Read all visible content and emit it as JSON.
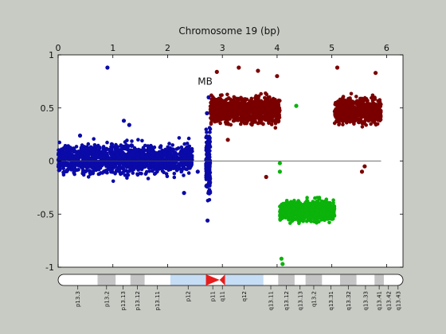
{
  "chart_data": {
    "type": "scatter",
    "title": "Chromosome 19 (bp)",
    "xlim": [
      0,
      6.3
    ],
    "ylim": [
      -1,
      1
    ],
    "x_ticks": [
      "0",
      "1",
      "2",
      "3",
      "4",
      "5",
      "6"
    ],
    "y_ticks": [
      "1",
      "0.5",
      "0",
      "-0.5",
      "-1"
    ],
    "annotation": "MB",
    "baseline": {
      "y": 0,
      "x_range": [
        0,
        5.9
      ]
    },
    "grid": false,
    "series": [
      {
        "color": "#0a0aa8",
        "x_range": [
          0,
          2.45
        ],
        "y_mean": 0.02,
        "y_spread": 0.12,
        "count": 1400,
        "outliers": [
          [
            0.9,
            0.88
          ],
          [
            1.2,
            0.38
          ],
          [
            1.3,
            0.34
          ],
          [
            0.4,
            0.24
          ],
          [
            2.3,
            -0.3
          ],
          [
            2.55,
            -0.1
          ]
        ]
      },
      {
        "color": "#0a0aa8",
        "x_range": [
          2.7,
          2.78
        ],
        "y_mean": 0.0,
        "y_spread": 0.28,
        "count": 180,
        "outliers": [
          [
            2.73,
            -0.56
          ],
          [
            2.75,
            0.6
          ],
          [
            2.72,
            0.45
          ]
        ]
      },
      {
        "color": "#7a0000",
        "x_range": [
          2.78,
          4.05
        ],
        "y_mean": 0.48,
        "y_spread": 0.1,
        "count": 1100,
        "outliers": [
          [
            3.3,
            0.88
          ],
          [
            2.9,
            0.84
          ],
          [
            3.65,
            0.85
          ],
          [
            3.8,
            -0.15
          ],
          [
            3.1,
            0.2
          ],
          [
            4.0,
            0.8
          ]
        ]
      },
      {
        "color": "#0bb30b",
        "x_range": [
          4.05,
          5.05
        ],
        "y_mean": -0.47,
        "y_spread": 0.08,
        "count": 800,
        "outliers": [
          [
            4.35,
            0.52
          ],
          [
            4.08,
            -0.92
          ],
          [
            4.1,
            -0.97
          ],
          [
            4.05,
            -0.02
          ],
          [
            4.05,
            -0.1
          ]
        ]
      },
      {
        "color": "#7a0000",
        "x_range": [
          5.05,
          5.9
        ],
        "y_mean": 0.47,
        "y_spread": 0.1,
        "count": 750,
        "outliers": [
          [
            5.1,
            0.88
          ],
          [
            5.55,
            -0.1
          ],
          [
            5.6,
            -0.05
          ],
          [
            5.8,
            0.83
          ]
        ]
      }
    ]
  },
  "ideogram": {
    "bands": [
      {
        "label": "p13.3",
        "start": 0.0,
        "end": 0.72,
        "shade": "white"
      },
      {
        "label": "p13.2",
        "start": 0.72,
        "end": 1.05,
        "shade": "gray"
      },
      {
        "label": "p13.13",
        "start": 1.05,
        "end": 1.32,
        "shade": "white"
      },
      {
        "label": "p13.12",
        "start": 1.32,
        "end": 1.58,
        "shade": "gray"
      },
      {
        "label": "p13.11",
        "start": 1.58,
        "end": 2.05,
        "shade": "white"
      },
      {
        "label": "p12",
        "start": 2.05,
        "end": 2.7,
        "shade": "blue"
      },
      {
        "label": "p11",
        "start": 2.7,
        "end": 2.95,
        "shade": "centromere"
      },
      {
        "label": "q11",
        "start": 2.95,
        "end": 3.05,
        "shade": "centromere"
      },
      {
        "label": "q12",
        "start": 3.05,
        "end": 3.75,
        "shade": "blue"
      },
      {
        "label": "q13.11",
        "start": 3.75,
        "end": 4.02,
        "shade": "white"
      },
      {
        "label": "q13.12",
        "start": 4.02,
        "end": 4.32,
        "shade": "gray"
      },
      {
        "label": "q13.13",
        "start": 4.32,
        "end": 4.52,
        "shade": "white"
      },
      {
        "label": "q13.2",
        "start": 4.52,
        "end": 4.82,
        "shade": "gray"
      },
      {
        "label": "q13.31",
        "start": 4.82,
        "end": 5.15,
        "shade": "white"
      },
      {
        "label": "q13.32",
        "start": 5.15,
        "end": 5.45,
        "shade": "gray"
      },
      {
        "label": "q13.33",
        "start": 5.45,
        "end": 5.78,
        "shade": "white"
      },
      {
        "label": "q13.41",
        "start": 5.78,
        "end": 5.95,
        "shade": "gray"
      },
      {
        "label": "q13.42",
        "start": 5.95,
        "end": 6.12,
        "shade": "white"
      },
      {
        "label": "q13.43",
        "start": 6.12,
        "end": 6.3,
        "shade": "white"
      }
    ],
    "colors": {
      "white": "#ffffff",
      "gray": "#c4c4c4",
      "blue": "#c5ddf5",
      "centromere": "#e81c1c"
    }
  }
}
